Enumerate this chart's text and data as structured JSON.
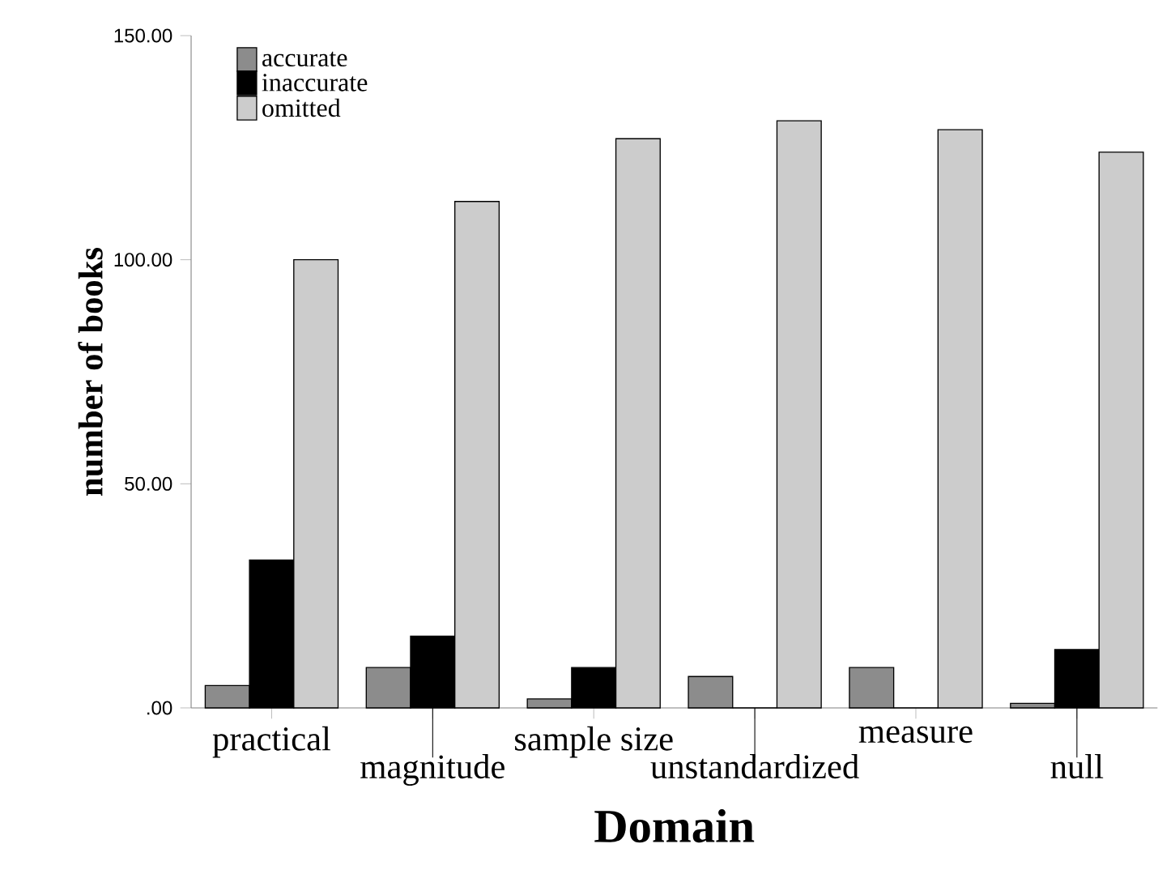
{
  "chart_data": {
    "type": "bar",
    "xlabel": "Domain",
    "ylabel": "number of books",
    "categories": [
      "practical",
      "magnitude",
      "sample size",
      "unstandardized",
      "measure",
      "null"
    ],
    "series": [
      {
        "name": "accurate",
        "color": "#8c8c8c",
        "values": [
          5,
          9,
          2,
          7,
          9,
          1
        ]
      },
      {
        "name": "inaccurate",
        "color": "#000000",
        "values": [
          33,
          16,
          9,
          0,
          0,
          13
        ]
      },
      {
        "name": "omitted",
        "color": "#cccccc",
        "values": [
          100,
          113,
          127,
          131,
          129,
          124
        ]
      }
    ],
    "ylim": [
      0,
      150
    ],
    "yticks": [
      {
        "value": 0,
        "label": ".00"
      },
      {
        "value": 50,
        "label": "50.00"
      },
      {
        "value": 100,
        "label": "100.00"
      },
      {
        "value": 150,
        "label": "150.00"
      }
    ],
    "grid": false,
    "legend": "top left"
  }
}
